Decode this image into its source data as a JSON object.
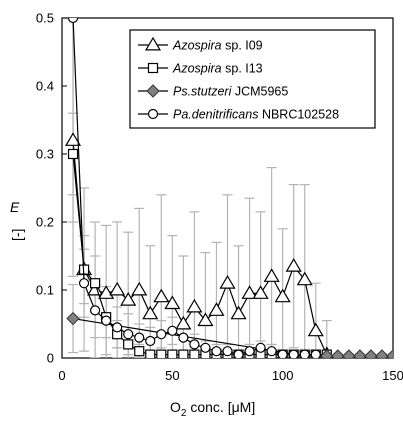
{
  "chart_data": {
    "type": "line",
    "xlabel": {
      "main": "O",
      "sub": "2",
      "rest": " conc. [μM]"
    },
    "ylabel": {
      "main": "E",
      "unit": "[-]"
    },
    "xlim": [
      0,
      150
    ],
    "ylim": [
      0,
      0.5
    ],
    "xticks": [
      0,
      50,
      100,
      150
    ],
    "yticks": [
      0,
      0.1,
      0.2,
      0.3,
      0.4,
      0.5
    ],
    "ytick_labels": [
      "0",
      "0.1",
      "0.2",
      "0.3",
      "0.4",
      "0.5"
    ],
    "grid": false,
    "legend_position": "top-right",
    "series": [
      {
        "name_italic": "Azospira",
        "name_rest": " sp. I09",
        "marker": "triangle",
        "fill": "#ffffff",
        "x": [
          5,
          10,
          15,
          20,
          25,
          30,
          35,
          40,
          45,
          50,
          55,
          60,
          65,
          70,
          75,
          80,
          85,
          90,
          95,
          100,
          105,
          110,
          115,
          120
        ],
        "y": [
          0.32,
          0.13,
          0.1,
          0.095,
          0.1,
          0.085,
          0.1,
          0.065,
          0.09,
          0.08,
          0.05,
          0.075,
          0.055,
          0.07,
          0.11,
          0.065,
          0.095,
          0.095,
          0.12,
          0.09,
          0.135,
          0.115,
          0.04,
          0.005
        ],
        "err": [
          0.2,
          0.12,
          0.1,
          0.1,
          0.1,
          0.1,
          0.12,
          0.1,
          0.15,
          0.1,
          0.1,
          0.14,
          0.1,
          0.1,
          0.13,
          0.1,
          0.14,
          0.12,
          0.16,
          0.1,
          0.12,
          0.14,
          0.07,
          0.05
        ]
      },
      {
        "name_italic": "Azospira",
        "name_rest": " sp. I13",
        "marker": "square",
        "fill": "#ffffff",
        "x": [
          5,
          10,
          15,
          20,
          25,
          30,
          35,
          40,
          45,
          50,
          55,
          60,
          65,
          70,
          75,
          80,
          85,
          90,
          95,
          100,
          105,
          110,
          115,
          120
        ],
        "y": [
          0.3,
          0.13,
          0.11,
          0.06,
          0.035,
          0.02,
          0.01,
          0.005,
          0.005,
          0.005,
          0.005,
          0.005,
          0.005,
          0.005,
          0.005,
          0.005,
          0.005,
          0.005,
          0.005,
          0.005,
          0.005,
          0.005,
          0.005,
          0.005
        ],
        "err": [
          0.06,
          0.05,
          0.04,
          0.03,
          0.02,
          0.015,
          0.01,
          0.005,
          0.005,
          0.005,
          0.005,
          0.005,
          0.005,
          0.005,
          0.005,
          0.005,
          0.005,
          0.005,
          0.005,
          0.005,
          0.005,
          0.005,
          0.005,
          0.005
        ]
      },
      {
        "name_italic": "Ps.stutzeri",
        "name_rest": " JCM5965",
        "marker": "diamond",
        "fill": "#808080",
        "x": [
          5,
          110,
          115,
          120,
          125,
          130,
          135,
          140,
          145,
          150
        ],
        "y": [
          0.058,
          0.003,
          0.003,
          0.003,
          0.003,
          0.003,
          0.003,
          0.003,
          0.003,
          0.003
        ],
        "err": [
          0.05,
          0.003,
          0.003,
          0.003,
          0.003,
          0.003,
          0.003,
          0.003,
          0.003,
          0.003
        ]
      },
      {
        "name_italic": "Pa.denitrificans",
        "name_rest": " NBRC102528",
        "marker": "circle",
        "fill": "#ffffff",
        "x": [
          5,
          10,
          15,
          20,
          25,
          30,
          35,
          40,
          45,
          50,
          55,
          60,
          65,
          70,
          75,
          80,
          85,
          90,
          95,
          100,
          105,
          110,
          115
        ],
        "y": [
          0.5,
          0.11,
          0.07,
          0.055,
          0.045,
          0.035,
          0.03,
          0.025,
          0.035,
          0.04,
          0.03,
          0.02,
          0.015,
          0.01,
          0.01,
          0.005,
          0.01,
          0.015,
          0.01,
          0.005,
          0.005,
          0.005,
          0.005
        ],
        "err": [
          0.3,
          0.05,
          0.04,
          0.05,
          0.03,
          0.03,
          0.02,
          0.02,
          0.02,
          0.02,
          0.02,
          0.015,
          0.01,
          0.01,
          0.01,
          0.005,
          0.01,
          0.01,
          0.01,
          0.005,
          0.005,
          0.005,
          0.005
        ]
      }
    ]
  }
}
